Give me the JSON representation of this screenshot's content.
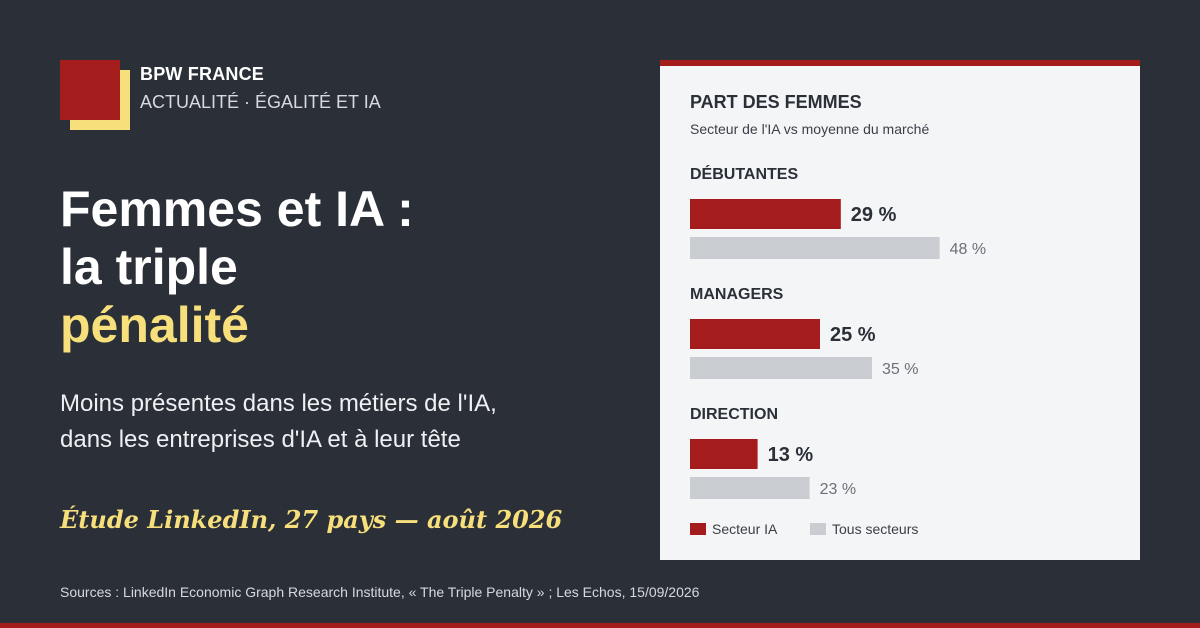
{
  "brand": {
    "name": "BPW FRANCE",
    "tagline": "ACTUALITÉ · ÉGALITÉ ET IA"
  },
  "headline": {
    "line1": "Femmes et IA :",
    "line2": "la triple",
    "line3": "pénalité"
  },
  "subtitle": {
    "line1": "Moins présentes dans les métiers de l'IA,",
    "line2": "dans les entreprises d'IA et à leur tête"
  },
  "study": "Étude LinkedIn, 27 pays — août 2026",
  "sources": "Sources : LinkedIn Economic Graph Research Institute, « The Triple Penalty » ; Les Echos, 15/09/2026",
  "colors": {
    "background": "#2b3038",
    "accent_red": "#a51c1c",
    "accent_yellow": "#f7df7c",
    "bar_grey": "#c9ccd1",
    "panel_bg": "#f4f5f7"
  },
  "chart_data": {
    "type": "bar",
    "orientation": "horizontal",
    "title": "PART DES FEMMES",
    "subtitle": "Secteur de l'IA  vs  moyenne du marché",
    "categories": [
      "DÉBUTANTES",
      "MANAGERS",
      "DIRECTION"
    ],
    "series": [
      {
        "name": "Secteur IA",
        "values": [
          29,
          25,
          13
        ],
        "labels": [
          "29 %",
          "25 %",
          "13 %"
        ],
        "color": "#a51c1c"
      },
      {
        "name": "Tous secteurs",
        "values": [
          48,
          35,
          23
        ],
        "labels": [
          "48 %",
          "35 %",
          "23 %"
        ],
        "color": "#c9ccd1"
      }
    ],
    "unit": "%",
    "xlim": [
      0,
      100
    ],
    "grid": false,
    "legend": "bottom-left"
  }
}
